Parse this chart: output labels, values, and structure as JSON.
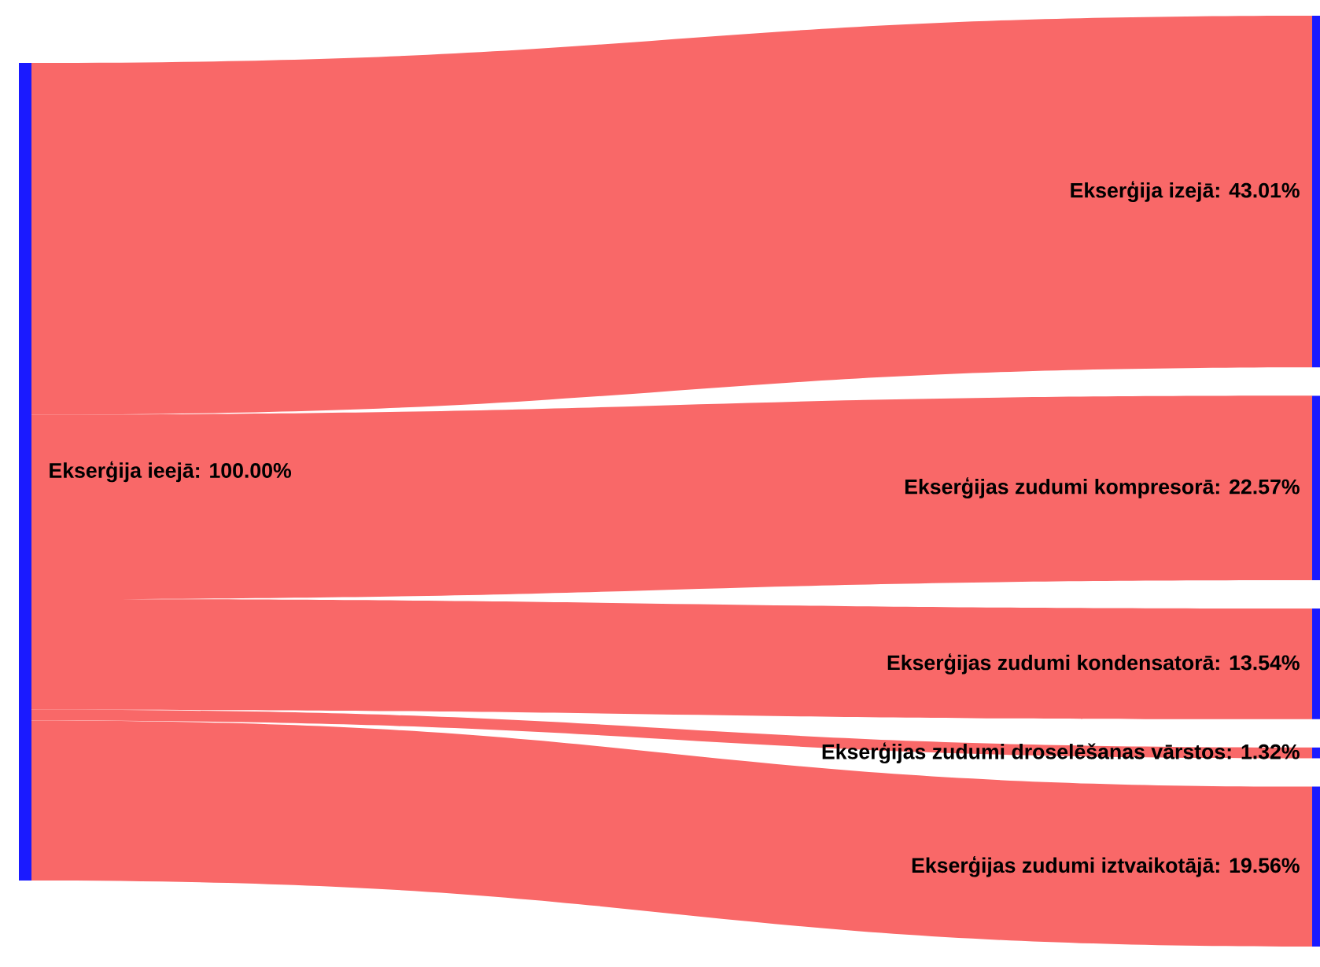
{
  "chart_data": {
    "type": "other",
    "categories": [
      "Ekserģija ieejā",
      "Ekserģija izejā",
      "Ekserģijas zudumi kompresorā",
      "Ekserģijas zudumi kondensatorā",
      "Ekserģijas zudumi droselēšanas vārstos",
      "Ekserģijas zudumi iztvaikotājā"
    ],
    "values": [
      100,
      43.01,
      22.57,
      13.54,
      1.32,
      19.56
    ],
    "value_labels": [
      ": 100.00%",
      ": 43.01%",
      ": 22.57%",
      ": 13.54%",
      ": 1.32%",
      ": 19.56%"
    ],
    "color": "#f96868"
  }
}
